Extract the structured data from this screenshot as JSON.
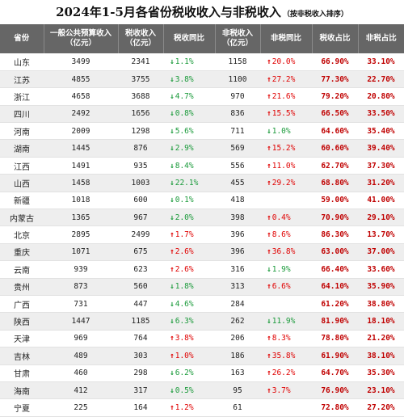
{
  "title": {
    "main": "2024年1-5月各省份税收收入与非税收入",
    "sub": "（按非税收入排序）"
  },
  "colors": {
    "up": "#e00000",
    "down": "#1a9a3a",
    "ratio": "#c00000",
    "header_bg": "#666666"
  },
  "columns": [
    "省份",
    "一般公共预算收入（亿元）",
    "税收收入（亿元）",
    "税收同比",
    "非税收入（亿元）",
    "非税同比",
    "税收占比",
    "非税占比"
  ],
  "rows": [
    {
      "province": "山东",
      "budget": "3499",
      "tax": "2341",
      "tax_yoy": "1.1%",
      "tax_dir": "down",
      "nontax": "1158",
      "nontax_yoy": "20.0%",
      "nontax_dir": "up",
      "tax_share": "66.90%",
      "nontax_share": "33.10%"
    },
    {
      "province": "江苏",
      "budget": "4855",
      "tax": "3755",
      "tax_yoy": "3.8%",
      "tax_dir": "down",
      "nontax": "1100",
      "nontax_yoy": "27.2%",
      "nontax_dir": "up",
      "tax_share": "77.30%",
      "nontax_share": "22.70%"
    },
    {
      "province": "浙江",
      "budget": "4658",
      "tax": "3688",
      "tax_yoy": "4.7%",
      "tax_dir": "down",
      "nontax": "970",
      "nontax_yoy": "21.6%",
      "nontax_dir": "up",
      "tax_share": "79.20%",
      "nontax_share": "20.80%"
    },
    {
      "province": "四川",
      "budget": "2492",
      "tax": "1656",
      "tax_yoy": "0.8%",
      "tax_dir": "down",
      "nontax": "836",
      "nontax_yoy": "15.5%",
      "nontax_dir": "up",
      "tax_share": "66.50%",
      "nontax_share": "33.50%"
    },
    {
      "province": "河南",
      "budget": "2009",
      "tax": "1298",
      "tax_yoy": "5.6%",
      "tax_dir": "down",
      "nontax": "711",
      "nontax_yoy": "1.0%",
      "nontax_dir": "down",
      "tax_share": "64.60%",
      "nontax_share": "35.40%"
    },
    {
      "province": "湖南",
      "budget": "1445",
      "tax": "876",
      "tax_yoy": "2.9%",
      "tax_dir": "down",
      "nontax": "569",
      "nontax_yoy": "15.2%",
      "nontax_dir": "up",
      "tax_share": "60.60%",
      "nontax_share": "39.40%"
    },
    {
      "province": "江西",
      "budget": "1491",
      "tax": "935",
      "tax_yoy": "8.4%",
      "tax_dir": "down",
      "nontax": "556",
      "nontax_yoy": "11.0%",
      "nontax_dir": "up",
      "tax_share": "62.70%",
      "nontax_share": "37.30%"
    },
    {
      "province": "山西",
      "budget": "1458",
      "tax": "1003",
      "tax_yoy": "22.1%",
      "tax_dir": "down",
      "nontax": "455",
      "nontax_yoy": "29.2%",
      "nontax_dir": "up",
      "tax_share": "68.80%",
      "nontax_share": "31.20%"
    },
    {
      "province": "新疆",
      "budget": "1018",
      "tax": "600",
      "tax_yoy": "0.1%",
      "tax_dir": "down",
      "nontax": "418",
      "nontax_yoy": "",
      "nontax_dir": "",
      "tax_share": "59.00%",
      "nontax_share": "41.00%"
    },
    {
      "province": "内蒙古",
      "budget": "1365",
      "tax": "967",
      "tax_yoy": "2.0%",
      "tax_dir": "down",
      "nontax": "398",
      "nontax_yoy": "0.4%",
      "nontax_dir": "up",
      "tax_share": "70.90%",
      "nontax_share": "29.10%"
    },
    {
      "province": "北京",
      "budget": "2895",
      "tax": "2499",
      "tax_yoy": "1.7%",
      "tax_dir": "up",
      "nontax": "396",
      "nontax_yoy": "8.6%",
      "nontax_dir": "up",
      "tax_share": "86.30%",
      "nontax_share": "13.70%"
    },
    {
      "province": "重庆",
      "budget": "1071",
      "tax": "675",
      "tax_yoy": "2.6%",
      "tax_dir": "up",
      "nontax": "396",
      "nontax_yoy": "36.8%",
      "nontax_dir": "up",
      "tax_share": "63.00%",
      "nontax_share": "37.00%"
    },
    {
      "province": "云南",
      "budget": "939",
      "tax": "623",
      "tax_yoy": "2.6%",
      "tax_dir": "up",
      "nontax": "316",
      "nontax_yoy": "1.9%",
      "nontax_dir": "down",
      "tax_share": "66.40%",
      "nontax_share": "33.60%"
    },
    {
      "province": "贵州",
      "budget": "873",
      "tax": "560",
      "tax_yoy": "1.8%",
      "tax_dir": "down",
      "nontax": "313",
      "nontax_yoy": "6.6%",
      "nontax_dir": "up",
      "tax_share": "64.10%",
      "nontax_share": "35.90%"
    },
    {
      "province": "广西",
      "budget": "731",
      "tax": "447",
      "tax_yoy": "4.6%",
      "tax_dir": "down",
      "nontax": "284",
      "nontax_yoy": "",
      "nontax_dir": "",
      "tax_share": "61.20%",
      "nontax_share": "38.80%"
    },
    {
      "province": "陕西",
      "budget": "1447",
      "tax": "1185",
      "tax_yoy": "6.3%",
      "tax_dir": "down",
      "nontax": "262",
      "nontax_yoy": "11.9%",
      "nontax_dir": "down",
      "tax_share": "81.90%",
      "nontax_share": "18.10%"
    },
    {
      "province": "天津",
      "budget": "969",
      "tax": "764",
      "tax_yoy": "3.8%",
      "tax_dir": "up",
      "nontax": "206",
      "nontax_yoy": "8.3%",
      "nontax_dir": "up",
      "tax_share": "78.80%",
      "nontax_share": "21.20%"
    },
    {
      "province": "吉林",
      "budget": "489",
      "tax": "303",
      "tax_yoy": "1.0%",
      "tax_dir": "up",
      "nontax": "186",
      "nontax_yoy": "35.8%",
      "nontax_dir": "up",
      "tax_share": "61.90%",
      "nontax_share": "38.10%"
    },
    {
      "province": "甘肃",
      "budget": "460",
      "tax": "298",
      "tax_yoy": "6.2%",
      "tax_dir": "down",
      "nontax": "163",
      "nontax_yoy": "26.2%",
      "nontax_dir": "up",
      "tax_share": "64.70%",
      "nontax_share": "35.30%"
    },
    {
      "province": "海南",
      "budget": "412",
      "tax": "317",
      "tax_yoy": "0.5%",
      "tax_dir": "down",
      "nontax": "95",
      "nontax_yoy": "3.7%",
      "nontax_dir": "up",
      "tax_share": "76.90%",
      "nontax_share": "23.10%"
    },
    {
      "province": "宁夏",
      "budget": "225",
      "tax": "164",
      "tax_yoy": "1.2%",
      "tax_dir": "up",
      "nontax": "61",
      "nontax_yoy": "",
      "nontax_dir": "",
      "tax_share": "72.80%",
      "nontax_share": "27.20%"
    }
  ]
}
